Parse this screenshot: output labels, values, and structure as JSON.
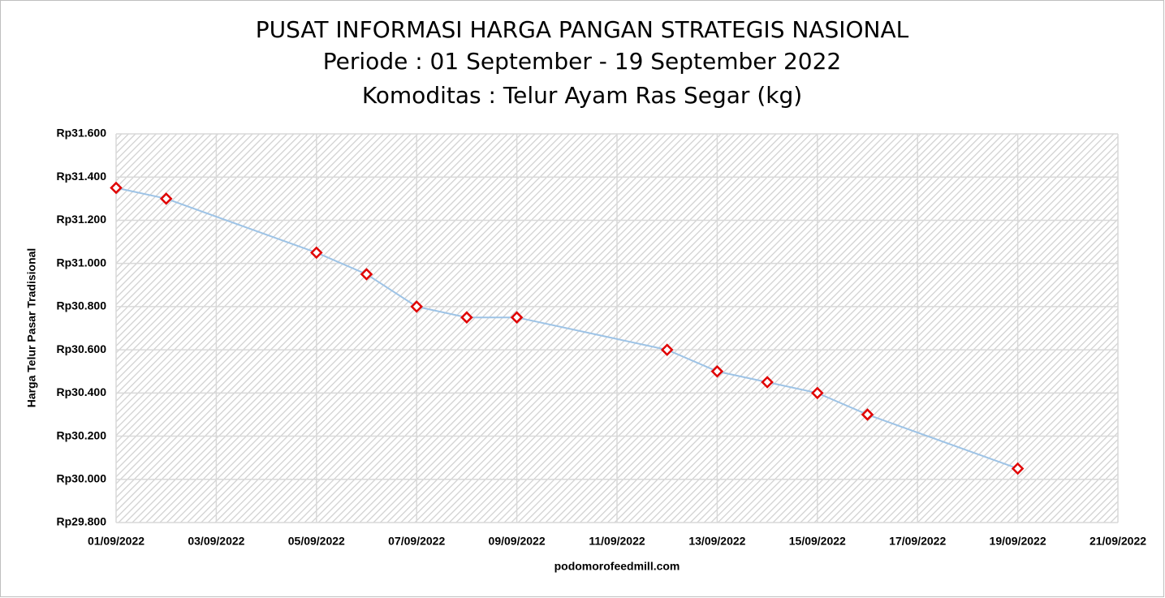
{
  "chart_data": {
    "type": "line",
    "title": "PUSAT INFORMASI HARGA PANGAN STRATEGIS NASIONAL",
    "subtitle": "Periode : 01 September - 19 September 2022",
    "subtitle2": "Komoditas : Telur Ayam Ras Segar (kg)",
    "y_label": "Harga Telur Pasar Tradisional",
    "x_label": "podomorofeedmill.com",
    "x": [
      "01/09/2022",
      "02/09/2022",
      "05/09/2022",
      "06/09/2022",
      "07/09/2022",
      "08/09/2022",
      "09/09/2022",
      "12/09/2022",
      "13/09/2022",
      "14/09/2022",
      "15/09/2022",
      "16/09/2022",
      "19/09/2022"
    ],
    "values": [
      31350,
      31300,
      31050,
      30950,
      30800,
      30750,
      30750,
      30600,
      30500,
      30450,
      30400,
      30300,
      30050
    ],
    "color": "#9dc3e6",
    "marker_color": "#e00000",
    "xlim": [
      "01/09/2022",
      "21/09/2022"
    ],
    "xticks": [
      "01/09/2022",
      "03/09/2022",
      "05/09/2022",
      "07/09/2022",
      "09/09/2022",
      "11/09/2022",
      "13/09/2022",
      "15/09/2022",
      "17/09/2022",
      "19/09/2022",
      "21/09/2022"
    ],
    "ylim": [
      29800,
      31600
    ],
    "yticks": [
      {
        "value": 29800,
        "label": "Rp29.800"
      },
      {
        "value": 30000,
        "label": "Rp30.000"
      },
      {
        "value": 30200,
        "label": "Rp30.200"
      },
      {
        "value": 30400,
        "label": "Rp30.400"
      },
      {
        "value": 30600,
        "label": "Rp30.600"
      },
      {
        "value": 30800,
        "label": "Rp30.800"
      },
      {
        "value": 31000,
        "label": "Rp31.000"
      },
      {
        "value": 31200,
        "label": "Rp31.200"
      },
      {
        "value": 31400,
        "label": "Rp31.400"
      },
      {
        "value": 31600,
        "label": "Rp31.600"
      }
    ],
    "grid": true
  }
}
